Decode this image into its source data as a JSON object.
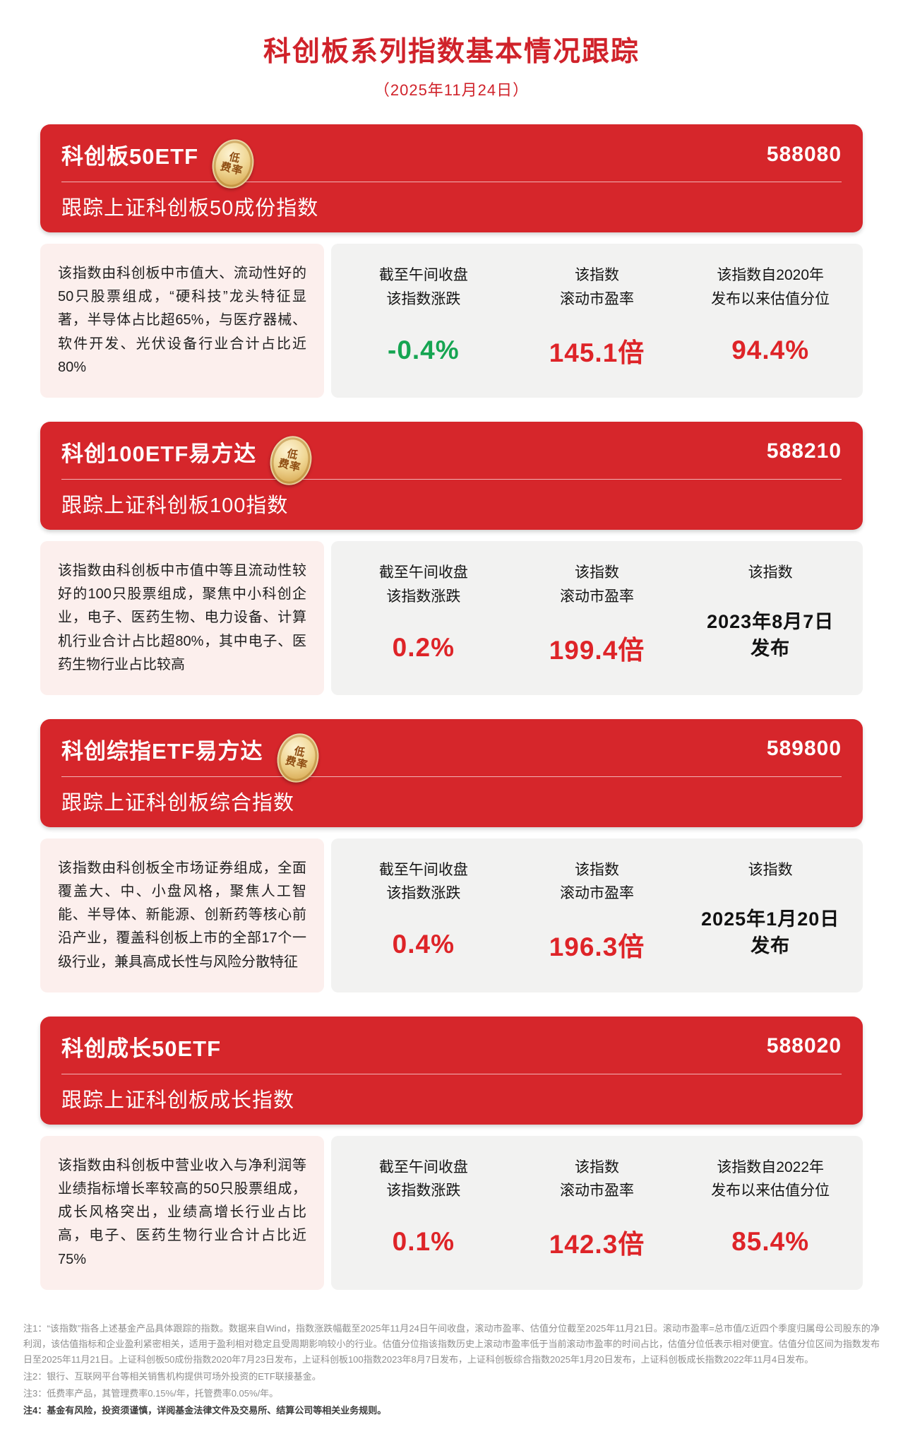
{
  "page": {
    "title": "科创板系列指数基本情况跟踪",
    "date": "（2025年11月24日）"
  },
  "colors": {
    "header_red": "#d6262b",
    "title_red": "#d0222a",
    "value_red": "#de2428",
    "value_green": "#16a552",
    "desc_pink": "#fcefed",
    "stats_gray": "#f2f2f1",
    "badge_gold": "#e0b261"
  },
  "badge": {
    "line1": "低",
    "line2": "费率"
  },
  "cards": [
    {
      "name": "科创板50ETF",
      "code": "588080",
      "tracking": "跟踪上证科创板50成份指数",
      "description": "该指数由科创板中市值大、流动性好的50只股票组成，“硬科技”龙头特征显著，半导体占比超65%，与医疗器械、软件开发、光伏设备行业合计占比近80%",
      "stats": [
        {
          "label": "截至午间收盘\n该指数涨跌",
          "value": "-0.4%",
          "color": "green"
        },
        {
          "label": "该指数\n滚动市盈率",
          "value": "145.1倍",
          "color": "red"
        },
        {
          "label": "该指数自2020年\n发布以来估值分位",
          "value": "94.4%",
          "color": "red"
        }
      ]
    },
    {
      "name": "科创100ETF易方达",
      "code": "588210",
      "tracking": "跟踪上证科创板100指数",
      "description": "该指数由科创板中市值中等且流动性较好的100只股票组成，聚焦中小科创企业，电子、医药生物、电力设备、计算机行业合计占比超80%，其中电子、医药生物行业占比较高",
      "stats": [
        {
          "label": "截至午间收盘\n该指数涨跌",
          "value": "0.2%",
          "color": "red"
        },
        {
          "label": "该指数\n滚动市盈率",
          "value": "199.4倍",
          "color": "red"
        },
        {
          "label": "该指数",
          "value": "2023年8月7日\n发布",
          "color": "dark"
        }
      ]
    },
    {
      "name": "科创综指ETF易方达",
      "code": "589800",
      "tracking": "跟踪上证科创板综合指数",
      "description": "该指数由科创板全市场证券组成，全面覆盖大、中、小盘风格，聚焦人工智能、半导体、新能源、创新药等核心前沿产业，覆盖科创板上市的全部17个一级行业，兼具高成长性与风险分散特征",
      "stats": [
        {
          "label": "截至午间收盘\n该指数涨跌",
          "value": "0.4%",
          "color": "red"
        },
        {
          "label": "该指数\n滚动市盈率",
          "value": "196.3倍",
          "color": "red"
        },
        {
          "label": "该指数",
          "value": "2025年1月20日\n发布",
          "color": "dark"
        }
      ]
    },
    {
      "name": "科创成长50ETF",
      "code": "588020",
      "tracking": "跟踪上证科创板成长指数",
      "description": "该指数由科创板中营业收入与净利润等业绩指标增长率较高的50只股票组成，成长风格突出，业绩高增长行业占比高，电子、医药生物行业合计占比近75%",
      "stats": [
        {
          "label": "截至午间收盘\n该指数涨跌",
          "value": "0.1%",
          "color": "red"
        },
        {
          "label": "该指数\n滚动市盈率",
          "value": "142.3倍",
          "color": "red"
        },
        {
          "label": "该指数自2022年\n发布以来估值分位",
          "value": "85.4%",
          "color": "red"
        }
      ]
    }
  ],
  "footnotes": [
    "注1：“该指数”指各上述基金产品具体跟踪的指数。数据来自Wind，指数涨跌幅截至2025年11月24日午间收盘，滚动市盈率、估值分位截至2025年11月21日。滚动市盈率=总市值/Σ近四个季度归属母公司股东的净利润，该估值指标和企业盈利紧密相关，适用于盈利相对稳定且受周期影响较小的行业。估值分位指该指数历史上滚动市盈率低于当前滚动市盈率的时间占比，估值分位低表示相对便宜。估值分位区间为指数发布日至2025年11月21日。上证科创板50成份指数2020年7月23日发布，上证科创板100指数2023年8月7日发布，上证科创板综合指数2025年1月20日发布，上证科创板成长指数2022年11月4日发布。",
    "注2：银行、互联网平台等相关销售机构提供可场外投资的ETF联接基金。",
    "注3：低费率产品，其管理费率0.15%/年，托管费率0.05%/年。",
    "注4：基金有风险，投资须谨慎，详阅基金法律文件及交易所、结算公司等相关业务规则。"
  ]
}
